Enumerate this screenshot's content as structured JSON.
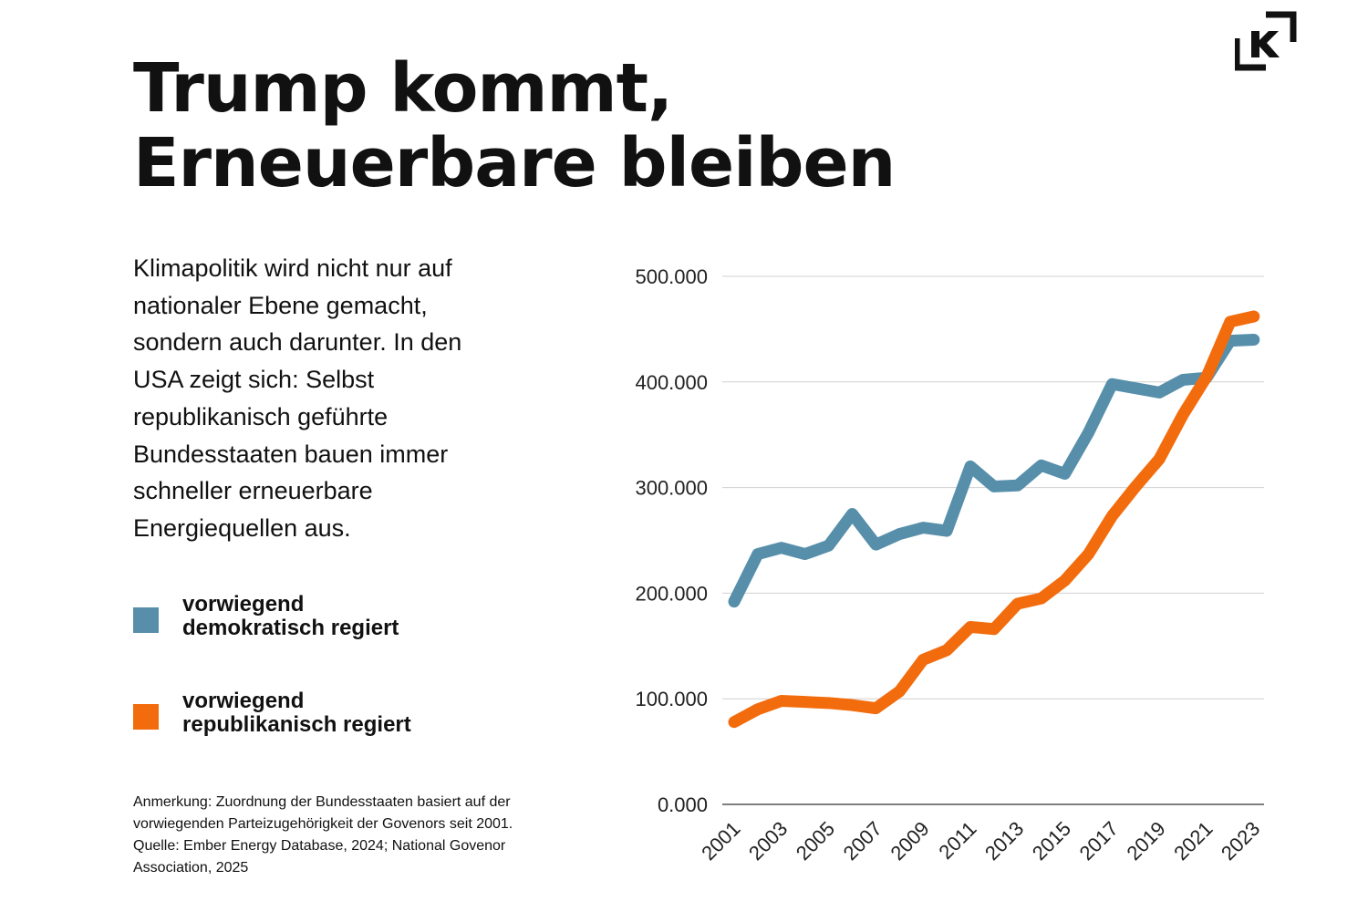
{
  "header": {
    "title_line1": "Trump kommt,",
    "title_line2": "Erneuerbare bleiben",
    "logo_text": "K"
  },
  "intro": "Klimapolitik wird nicht nur auf nationaler Ebene gemacht, sondern auch darunter. In den USA zeigt sich: Selbst republikanisch geführte Bundesstaaten bauen immer schneller erneuerbare Energiequellen aus.",
  "legend": [
    {
      "line1": "vorwiegend",
      "line2": "demokratisch regiert",
      "color": "#578fab"
    },
    {
      "line1": "vorwiegend",
      "line2": "republikanisch regiert",
      "color": "#f26c0d"
    }
  ],
  "note": "Anmerkung: Zuordnung der Bundesstaaten basiert auf der vorwiegenden Parteizugehörigkeit der Govenors seit 2001. Quelle: Ember Energy Database, 2024; National Govenor Association, 2025",
  "chart_data": {
    "type": "line",
    "title": "",
    "xlabel": "",
    "ylabel": "",
    "x": [
      2001,
      2002,
      2003,
      2004,
      2005,
      2006,
      2007,
      2008,
      2009,
      2010,
      2011,
      2012,
      2013,
      2014,
      2015,
      2016,
      2017,
      2018,
      2019,
      2020,
      2021,
      2022,
      2023
    ],
    "x_tick_labels": [
      "2001",
      "2003",
      "2005",
      "2007",
      "2009",
      "2011",
      "2013",
      "2015",
      "2017",
      "2019",
      "2021",
      "2023"
    ],
    "y_tick_labels": [
      "0.000",
      "100.000",
      "200.000",
      "300.000",
      "400.000",
      "500.000"
    ],
    "y_ticks": [
      0,
      100000,
      200000,
      300000,
      400000,
      500000
    ],
    "ylim": [
      0,
      500000
    ],
    "grid": "horizontal",
    "legend_placement": "left",
    "series": [
      {
        "name": "vorwiegend demokratisch regiert",
        "color": "#578fab",
        "values": [
          192000,
          237000,
          243000,
          237000,
          245000,
          275000,
          246000,
          256000,
          262000,
          259000,
          320000,
          301000,
          302000,
          321000,
          313000,
          352000,
          398000,
          394000,
          390000,
          402000,
          404000,
          439000,
          440000
        ]
      },
      {
        "name": "vorwiegend republikanisch regiert",
        "color": "#f26c0d",
        "values": [
          78000,
          90000,
          98000,
          97000,
          96000,
          94000,
          91000,
          107000,
          137000,
          146000,
          168000,
          166000,
          190000,
          195000,
          212000,
          237000,
          273000,
          301000,
          327000,
          369000,
          405000,
          457000,
          462000
        ]
      }
    ]
  }
}
